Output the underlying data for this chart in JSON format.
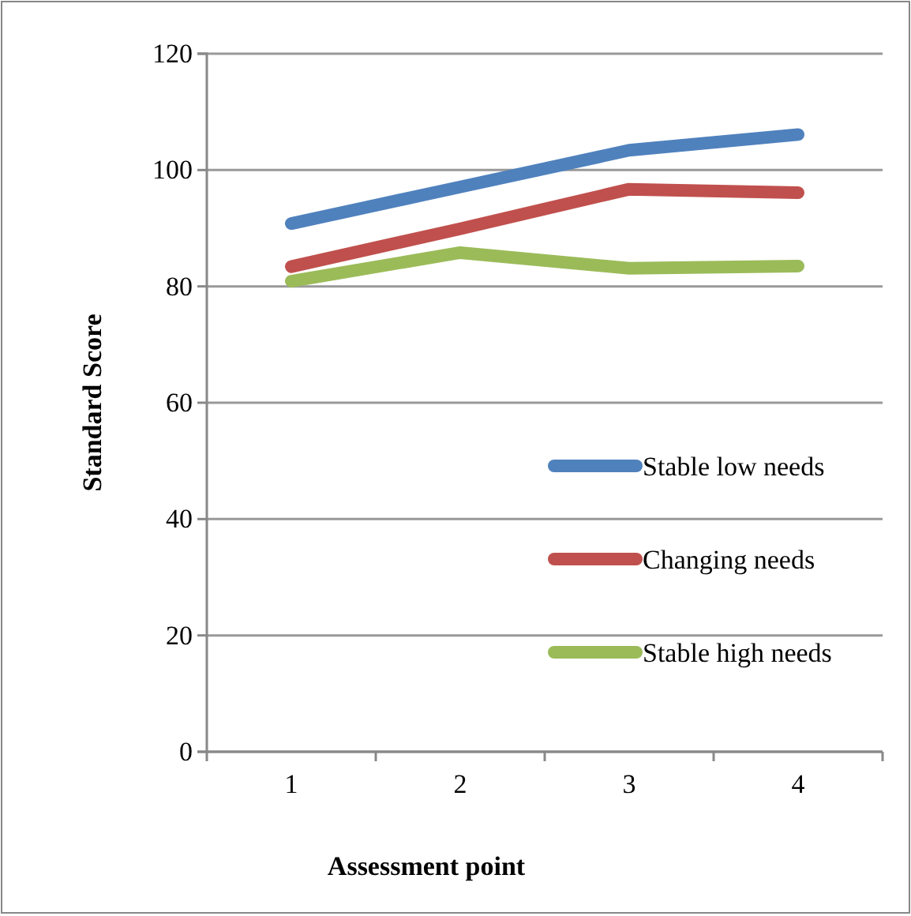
{
  "chart_data": {
    "type": "line",
    "xlabel": "Assessment point",
    "ylabel": "Standard Score",
    "categories": [
      "1",
      "2",
      "3",
      "4"
    ],
    "series": [
      {
        "name": "Stable low needs",
        "color": "#4f81bd",
        "values": [
          90.8,
          97.1,
          103.4,
          106.1
        ]
      },
      {
        "name": "Changing needs",
        "color": "#c0504d",
        "values": [
          83.4,
          89.9,
          96.7,
          96.1
        ]
      },
      {
        "name": "Stable high needs",
        "color": "#9bbb59",
        "values": [
          80.9,
          85.8,
          83.1,
          83.5
        ]
      }
    ],
    "ylim": [
      0,
      120
    ],
    "yticks": [
      0,
      20,
      40,
      60,
      80,
      100,
      120
    ],
    "grid": "y",
    "legend": "right",
    "marker": "none",
    "line_style": "solid"
  }
}
